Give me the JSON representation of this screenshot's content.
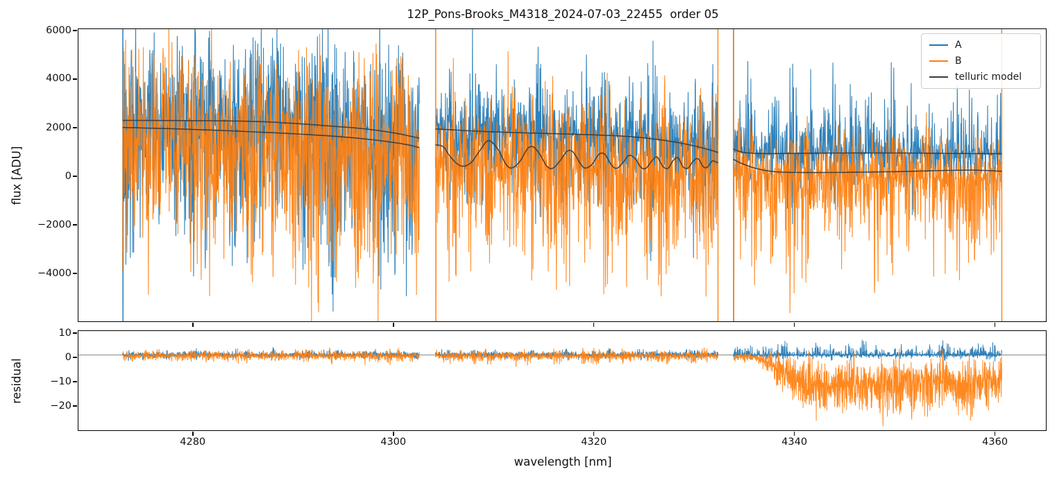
{
  "chart_data": {
    "type": "line",
    "title": "12P_Pons-Brooks_M4318_2024-07-03_22455  order 05",
    "xlabel": "wavelength [nm]",
    "xlim": [
      4268.6,
      4365.08
    ],
    "xticks": {
      "values": [
        4280,
        4300,
        4320,
        4340,
        4360
      ],
      "labels": [
        "4280",
        "4300",
        "4320",
        "4340",
        "4360"
      ]
    },
    "segments_nm": [
      [
        4273.0,
        4302.6
      ],
      [
        4304.2,
        4332.4
      ],
      [
        4333.9,
        4360.7
      ]
    ],
    "legend": [
      {
        "label": "A",
        "color": "#1f77b4"
      },
      {
        "label": "B",
        "color": "#ff7f0e"
      },
      {
        "label": "telluric model",
        "color": "#3a3a3a"
      }
    ],
    "seed": 42,
    "step_nm": {
      "top": 0.028,
      "bottom": 0.02
    },
    "top": {
      "ylabel": "flux [ADU]",
      "ylim": [
        -5971,
        6057
      ],
      "yticks": {
        "values": [
          6000,
          4000,
          2000,
          0,
          -2000,
          -4000
        ],
        "labels": [
          "6000",
          "4000",
          "2000",
          "0",
          "−2000",
          "−4000"
        ]
      },
      "telluric_curves": [
        "upper1",
        "lower1",
        "upper2",
        "lower2osc",
        "upper3",
        "lower3"
      ],
      "noise": {
        "A": [
          {
            "range": [
              4273.0,
              4302.6
            ],
            "base": "upper1",
            "up": 5200,
            "down": 8500,
            "pow": 1.35,
            "env": [
              0.5,
              1.1
            ],
            "period": 2.5,
            "phase": 0.3,
            "edge_start": true
          },
          {
            "range": [
              4304.2,
              4332.4
            ],
            "base": "upper2",
            "up": 4400,
            "down": 5600,
            "pow": 1.9,
            "env": [
              0.38,
              1.05
            ],
            "period": 2.2,
            "phase": 1.1
          },
          {
            "range": [
              4333.9,
              4360.7
            ],
            "base": "upper3",
            "up": 5200,
            "down": 3400,
            "pow": 2.5,
            "env": [
              0.38,
              0.95
            ],
            "period": 2.0,
            "phase": 2.0,
            "edge_start": true
          }
        ],
        "B": [
          {
            "range": [
              4273.0,
              4302.6
            ],
            "base": "baseB1",
            "up": 5600,
            "down": 7200,
            "pow": 1.3,
            "env": [
              0.55,
              1.15
            ],
            "period": 2.1,
            "phase": 1.9
          },
          {
            "range": [
              4304.2,
              4332.4
            ],
            "base": "baseB2",
            "up": 5000,
            "down": 6800,
            "pow": 1.6,
            "env": [
              0.45,
              1.1
            ],
            "period": 1.9,
            "phase": 0.6,
            "edge_start": true,
            "edge_end": true
          },
          {
            "range": [
              4333.9,
              4360.7
            ],
            "base": "baseB3",
            "up": 3000,
            "down": 6200,
            "pow": 1.95,
            "env": [
              0.45,
              1.05
            ],
            "period": 1.7,
            "phase": 2.6,
            "edge_start": true,
            "edge_end": true
          }
        ]
      }
    },
    "bottom": {
      "ylabel": "residual",
      "ylim": [
        -30,
        10.86
      ],
      "hline": 1.0,
      "yticks": {
        "values": [
          10,
          0,
          -10,
          -20
        ],
        "labels": [
          "10",
          "0",
          "−10",
          "−20"
        ]
      },
      "noise": {
        "A": [
          {
            "range": [
              4273.0,
              4302.6
            ],
            "base": 1,
            "up": 3.4,
            "down": 2.8,
            "pow": 2.1,
            "env": [
              0.3,
              1.0
            ],
            "period": 1.3,
            "phase": 0.2
          },
          {
            "range": [
              4304.2,
              4332.4
            ],
            "base": 1,
            "up": 3.8,
            "down": 3.0,
            "pow": 2.1,
            "env": [
              0.3,
              1.0
            ],
            "period": 1.5,
            "phase": 1.3
          },
          {
            "range": [
              4333.9,
              4360.7
            ],
            "base": 1,
            "up": 8.0,
            "down": 3.4,
            "pow": 2.7,
            "env": [
              0.3,
              1.0
            ],
            "period": 1.6,
            "phase": 2.2
          }
        ],
        "B": [
          {
            "range": [
              4273.0,
              4302.6
            ],
            "base": 0.7,
            "up": 3.8,
            "down": 4.4,
            "pow": 1.95,
            "env": [
              0.35,
              1.05
            ],
            "period": 1.15,
            "phase": 2.5
          },
          {
            "range": [
              4304.2,
              4332.4
            ],
            "base": 0.7,
            "up": 4.2,
            "down": 4.8,
            "pow": 1.9,
            "env": [
              0.35,
              1.05
            ],
            "period": 1.35,
            "phase": 0.9
          },
          {
            "range": [
              4333.9,
              4360.7
            ],
            "base": "bres3",
            "up": 16,
            "down": 20,
            "pow": 1.35,
            "env": [
              0.5,
              1.05
            ],
            "period": 1.5,
            "phase": 1.0,
            "amp": "ramp3"
          }
        ]
      }
    },
    "curves": {
      "upper1": [
        [
          4273.0,
          2300
        ],
        [
          4280,
          2290
        ],
        [
          4286,
          2260
        ],
        [
          4290,
          2180
        ],
        [
          4294,
          2060
        ],
        [
          4297,
          1960
        ],
        [
          4300,
          1790
        ],
        [
          4302.6,
          1570
        ]
      ],
      "lower1": [
        [
          4273.0,
          2010
        ],
        [
          4280,
          1930
        ],
        [
          4286,
          1830
        ],
        [
          4291,
          1730
        ],
        [
          4295,
          1620
        ],
        [
          4298,
          1500
        ],
        [
          4301,
          1330
        ],
        [
          4302.6,
          1180
        ]
      ],
      "upper2": [
        [
          4304.2,
          1950
        ],
        [
          4308,
          1865
        ],
        [
          4312,
          1800
        ],
        [
          4316,
          1755
        ],
        [
          4320,
          1705
        ],
        [
          4323,
          1650
        ],
        [
          4325,
          1580
        ],
        [
          4327,
          1480
        ],
        [
          4329,
          1340
        ],
        [
          4331,
          1150
        ],
        [
          4332.4,
          980
        ]
      ],
      "lower2osc": [
        [
          4304.2,
          1300
        ],
        [
          4305,
          1210
        ],
        [
          4305.7,
          800
        ],
        [
          4306.7,
          430
        ],
        [
          4307.7,
          540
        ],
        [
          4308.7,
          1100
        ],
        [
          4309.5,
          1470
        ],
        [
          4310.4,
          1130
        ],
        [
          4311.2,
          520
        ],
        [
          4311.8,
          340
        ],
        [
          4312.6,
          600
        ],
        [
          4313.4,
          1140
        ],
        [
          4314.0,
          1200
        ],
        [
          4314.7,
          850
        ],
        [
          4315.3,
          420
        ],
        [
          4315.9,
          330
        ],
        [
          4316.6,
          620
        ],
        [
          4317.3,
          1020
        ],
        [
          4317.9,
          1010
        ],
        [
          4318.6,
          560
        ],
        [
          4319.1,
          340
        ],
        [
          4319.8,
          480
        ],
        [
          4320.5,
          900
        ],
        [
          4321.1,
          900
        ],
        [
          4321.8,
          440
        ],
        [
          4322.3,
          330
        ],
        [
          4322.9,
          560
        ],
        [
          4323.5,
          860
        ],
        [
          4324.1,
          730
        ],
        [
          4324.7,
          370
        ],
        [
          4325.2,
          330
        ],
        [
          4325.8,
          640
        ],
        [
          4326.3,
          790
        ],
        [
          4326.9,
          400
        ],
        [
          4327.4,
          330
        ],
        [
          4327.9,
          640
        ],
        [
          4328.4,
          760
        ],
        [
          4328.9,
          390
        ],
        [
          4329.4,
          340
        ],
        [
          4329.9,
          620
        ],
        [
          4330.4,
          720
        ],
        [
          4330.9,
          400
        ],
        [
          4331.3,
          370
        ],
        [
          4331.8,
          630
        ],
        [
          4332.1,
          600
        ],
        [
          4332.4,
          560
        ]
      ],
      "upper3": [
        [
          4333.9,
          1130
        ],
        [
          4334.6,
          1010
        ],
        [
          4335.6,
          955
        ],
        [
          4337.6,
          935
        ],
        [
          4341.6,
          950
        ],
        [
          4346.6,
          960
        ],
        [
          4351.6,
          955
        ],
        [
          4354.6,
          945
        ],
        [
          4357.6,
          935
        ],
        [
          4360.7,
          930
        ]
      ],
      "lower3": [
        [
          4333.9,
          700
        ],
        [
          4334.8,
          520
        ],
        [
          4336.1,
          330
        ],
        [
          4337.6,
          210
        ],
        [
          4339.1,
          165
        ],
        [
          4341.6,
          155
        ],
        [
          4344.6,
          160
        ],
        [
          4347.6,
          175
        ],
        [
          4350.6,
          195
        ],
        [
          4353.6,
          225
        ],
        [
          4356.6,
          250
        ],
        [
          4358.6,
          245
        ],
        [
          4360.7,
          205
        ]
      ],
      "baseB1": [
        [
          4273.0,
          1500
        ],
        [
          4302.6,
          900
        ]
      ],
      "baseB2": [
        [
          4304.2,
          500
        ],
        [
          4332.4,
          100
        ]
      ],
      "baseB3": [
        [
          4333.9,
          100
        ],
        [
          4360.7,
          -150
        ]
      ],
      "bres3": [
        [
          4333.9,
          0.5
        ],
        [
          4336.1,
          0
        ],
        [
          4337.6,
          -2
        ],
        [
          4339.1,
          -7
        ],
        [
          4340.6,
          -11
        ],
        [
          4342.6,
          -12
        ],
        [
          4345.6,
          -11
        ],
        [
          4349.6,
          -11
        ],
        [
          4353.6,
          -10
        ],
        [
          4357.6,
          -10
        ],
        [
          4360.7,
          -9
        ]
      ],
      "ramp3": [
        [
          4333.9,
          0.12
        ],
        [
          4336.1,
          0.2
        ],
        [
          4337.6,
          0.45
        ],
        [
          4339.1,
          0.8
        ],
        [
          4340.6,
          1
        ],
        [
          4360.7,
          1
        ]
      ]
    }
  },
  "colors": {
    "background": "#ffffff",
    "spine": "#000000",
    "hline": "#888888",
    "legend_border": "#cccccc"
  }
}
